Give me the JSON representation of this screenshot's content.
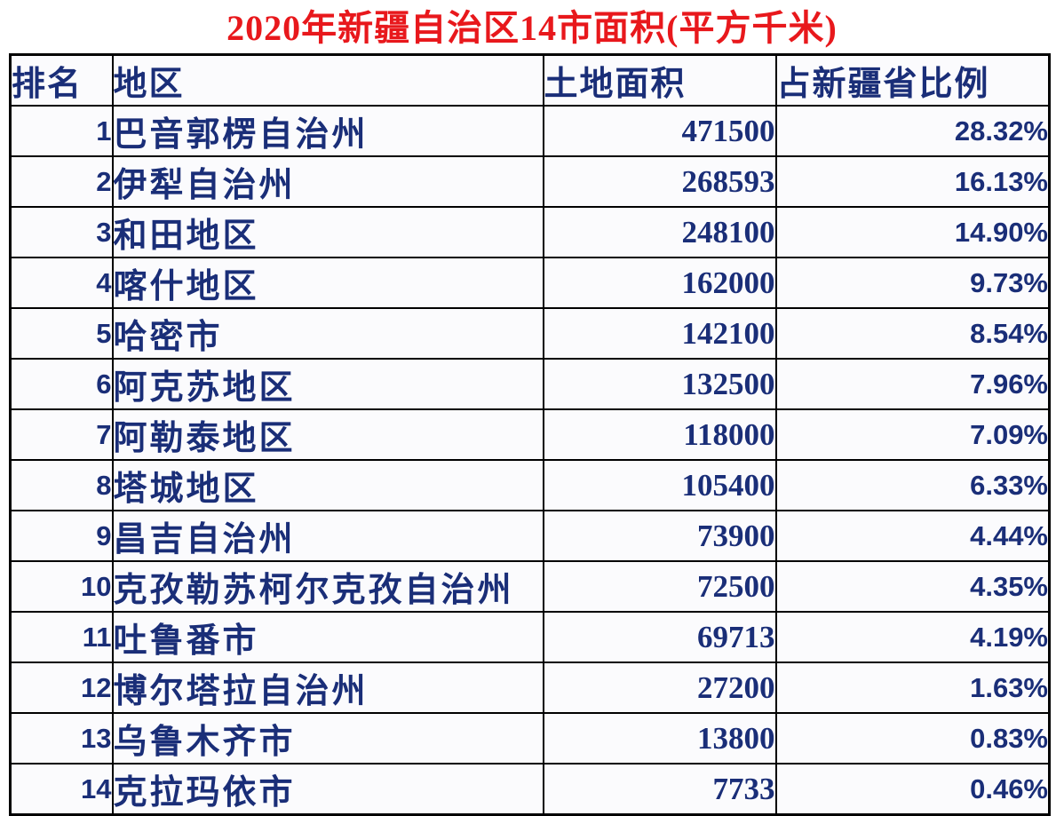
{
  "title": "2020年新疆自治区14市面积(平方千米)",
  "colors": {
    "title_red": "#e8181c",
    "table_text_navy": "#1a2e78",
    "border_black": "#000000",
    "cell_background": "#fbfbfd",
    "page_background": "#ffffff"
  },
  "chart_data": {
    "type": "table",
    "title": "2020年新疆自治区14市面积(平方千米)",
    "columns": [
      "排名",
      "地区",
      "土地面积",
      "占新疆省比例"
    ],
    "rows": [
      {
        "rank": "1",
        "region": "巴音郭楞自治州",
        "area": "471500",
        "percent": "28.32%"
      },
      {
        "rank": "2",
        "region": "伊犁自治州",
        "area": "268593",
        "percent": "16.13%"
      },
      {
        "rank": "3",
        "region": "和田地区",
        "area": "248100",
        "percent": "14.90%"
      },
      {
        "rank": "4",
        "region": "喀什地区",
        "area": "162000",
        "percent": "9.73%"
      },
      {
        "rank": "5",
        "region": "哈密市",
        "area": "142100",
        "percent": "8.54%"
      },
      {
        "rank": "6",
        "region": "阿克苏地区",
        "area": "132500",
        "percent": "7.96%"
      },
      {
        "rank": "7",
        "region": "阿勒泰地区",
        "area": "118000",
        "percent": "7.09%"
      },
      {
        "rank": "8",
        "region": "塔城地区",
        "area": "105400",
        "percent": "6.33%"
      },
      {
        "rank": "9",
        "region": "昌吉自治州",
        "area": "73900",
        "percent": "4.44%"
      },
      {
        "rank": "10",
        "region": "克孜勒苏柯尔克孜自治州",
        "area": "72500",
        "percent": "4.35%"
      },
      {
        "rank": "11",
        "region": "吐鲁番市",
        "area": "69713",
        "percent": "4.19%"
      },
      {
        "rank": "12",
        "region": "博尔塔拉自治州",
        "area": "27200",
        "percent": "1.63%"
      },
      {
        "rank": "13",
        "region": "乌鲁木齐市",
        "area": "13800",
        "percent": "0.83%"
      },
      {
        "rank": "14",
        "region": "克拉玛依市",
        "area": "7733",
        "percent": "0.46%"
      }
    ]
  }
}
